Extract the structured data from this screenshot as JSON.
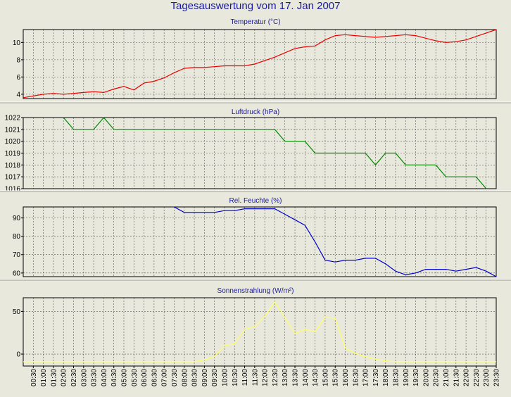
{
  "title": "Tagesauswertung vom 17. Jan 2007",
  "chart_data": [
    {
      "type": "line",
      "title": "Temperatur (°C)",
      "color": "#ee0000",
      "ylim": [
        3.5,
        11.5
      ],
      "yticks": [
        4,
        6,
        8,
        10
      ],
      "x": [
        "00:00",
        "00:30",
        "01:00",
        "01:30",
        "02:00",
        "02:30",
        "03:00",
        "03:30",
        "04:00",
        "04:30",
        "05:00",
        "05:30",
        "06:00",
        "06:30",
        "07:00",
        "07:30",
        "08:00",
        "08:30",
        "09:00",
        "09:30",
        "10:00",
        "10:30",
        "11:00",
        "11:30",
        "12:00",
        "12:30",
        "13:00",
        "13:30",
        "14:00",
        "14:30",
        "15:00",
        "15:30",
        "16:00",
        "16:30",
        "17:00",
        "17:30",
        "18:00",
        "18:30",
        "19:00",
        "19:30",
        "20:00",
        "20:30",
        "21:00",
        "21:30",
        "22:00",
        "22:30",
        "23:00",
        "23:30"
      ],
      "values": [
        3.6,
        3.8,
        4.0,
        4.1,
        4.0,
        4.1,
        4.2,
        4.3,
        4.2,
        4.6,
        4.9,
        4.5,
        5.3,
        5.5,
        5.9,
        6.5,
        7.0,
        7.1,
        7.1,
        7.2,
        7.3,
        7.3,
        7.3,
        7.5,
        7.9,
        8.3,
        8.8,
        9.3,
        9.5,
        9.6,
        10.3,
        10.8,
        10.9,
        10.8,
        10.7,
        10.6,
        10.7,
        10.8,
        10.9,
        10.8,
        10.5,
        10.2,
        10.0,
        10.1,
        10.3,
        10.7,
        11.1,
        11.5
      ]
    },
    {
      "type": "line",
      "title": "Luftdruck (hPa)",
      "color": "#008800",
      "ylim": [
        1016,
        1022
      ],
      "yticks": [
        1016,
        1017,
        1018,
        1019,
        1020,
        1021,
        1022
      ],
      "x": [
        "00:00",
        "00:30",
        "01:00",
        "01:30",
        "02:00",
        "02:30",
        "03:00",
        "03:30",
        "04:00",
        "04:30",
        "05:00",
        "05:30",
        "06:00",
        "06:30",
        "07:00",
        "07:30",
        "08:00",
        "08:30",
        "09:00",
        "09:30",
        "10:00",
        "10:30",
        "11:00",
        "11:30",
        "12:00",
        "12:30",
        "13:00",
        "13:30",
        "14:00",
        "14:30",
        "15:00",
        "15:30",
        "16:00",
        "16:30",
        "17:00",
        "17:30",
        "18:00",
        "18:30",
        "19:00",
        "19:30",
        "20:00",
        "20:30",
        "21:00",
        "21:30",
        "22:00",
        "22:30",
        "23:00",
        "23:30"
      ],
      "values": [
        null,
        null,
        null,
        null,
        1022,
        1021,
        1021,
        1021,
        1022,
        1021,
        1021,
        1021,
        1021,
        1021,
        1021,
        1021,
        1021,
        1021,
        1021,
        1021,
        1021,
        1021,
        1021,
        1021,
        1021,
        1021,
        1020,
        1020,
        1020,
        1019,
        1019,
        1019,
        1019,
        1019,
        1019,
        1018,
        1019,
        1019,
        1018,
        1018,
        1018,
        1018,
        1017,
        1017,
        1017,
        1017,
        1016,
        null
      ]
    },
    {
      "type": "line",
      "title": "Rel. Feuchte (%)",
      "color": "#0000cc",
      "ylim": [
        58,
        96
      ],
      "yticks": [
        60,
        70,
        80,
        90
      ],
      "x": [
        "00:00",
        "00:30",
        "01:00",
        "01:30",
        "02:00",
        "02:30",
        "03:00",
        "03:30",
        "04:00",
        "04:30",
        "05:00",
        "05:30",
        "06:00",
        "06:30",
        "07:00",
        "07:30",
        "08:00",
        "08:30",
        "09:00",
        "09:30",
        "10:00",
        "10:30",
        "11:00",
        "11:30",
        "12:00",
        "12:30",
        "13:00",
        "13:30",
        "14:00",
        "14:30",
        "15:00",
        "15:30",
        "16:00",
        "16:30",
        "17:00",
        "17:30",
        "18:00",
        "18:30",
        "19:00",
        "19:30",
        "20:00",
        "20:30",
        "21:00",
        "21:30",
        "22:00",
        "22:30",
        "23:00",
        "23:30"
      ],
      "values": [
        null,
        null,
        null,
        null,
        null,
        null,
        null,
        null,
        null,
        null,
        null,
        null,
        null,
        null,
        null,
        96,
        93,
        93,
        93,
        93,
        94,
        94,
        95,
        95,
        95,
        95,
        92,
        89,
        86,
        77,
        67,
        66,
        67,
        67,
        68,
        68,
        65,
        61,
        59,
        60,
        62,
        62,
        62,
        61,
        62,
        63,
        61,
        58
      ]
    },
    {
      "type": "line",
      "title": "Sonnenstrahlung (W/m²)",
      "color": "#ffff66",
      "ylim": [
        -14,
        66
      ],
      "yticks": [
        0,
        50
      ],
      "x": [
        "00:00",
        "00:30",
        "01:00",
        "01:30",
        "02:00",
        "02:30",
        "03:00",
        "03:30",
        "04:00",
        "04:30",
        "05:00",
        "05:30",
        "06:00",
        "06:30",
        "07:00",
        "07:30",
        "08:00",
        "08:30",
        "09:00",
        "09:30",
        "10:00",
        "10:30",
        "11:00",
        "11:30",
        "12:00",
        "12:30",
        "13:00",
        "13:30",
        "14:00",
        "14:30",
        "15:00",
        "15:30",
        "16:00",
        "16:30",
        "17:00",
        "17:30",
        "18:00",
        "18:30",
        "19:00",
        "19:30",
        "20:00",
        "20:30",
        "21:00",
        "21:30",
        "22:00",
        "22:30",
        "23:00",
        "23:30"
      ],
      "values": [
        -9,
        -9,
        -9,
        -9,
        -9,
        -9,
        -9,
        -9,
        -9,
        -9,
        -9,
        -9,
        -9,
        -9,
        -9,
        -9,
        -9,
        -9,
        -7,
        -3,
        10,
        12,
        29,
        32,
        44,
        61,
        43,
        24,
        29,
        26,
        43,
        42,
        7,
        1,
        -3,
        -6,
        -8,
        -9,
        -9,
        -9,
        -9,
        -9,
        -9,
        -9,
        -9,
        -9,
        -9,
        -9
      ]
    }
  ],
  "x_tick_labels": [
    "00:30",
    "01:00",
    "01:30",
    "02:00",
    "02:30",
    "03:00",
    "03:30",
    "04:00",
    "04:30",
    "05:00",
    "05:30",
    "06:00",
    "06:30",
    "07:00",
    "07:30",
    "08:00",
    "08:30",
    "09:00",
    "09:30",
    "10:00",
    "10:30",
    "11:00",
    "11:30",
    "12:00",
    "12:30",
    "13:00",
    "13:30",
    "14:00",
    "14:30",
    "15:00",
    "15:30",
    "16:00",
    "16:30",
    "17:00",
    "17:30",
    "18:00",
    "18:30",
    "19:00",
    "19:30",
    "20:00",
    "20:30",
    "21:00",
    "21:30",
    "22:00",
    "22:30",
    "23:00",
    "23:30"
  ]
}
